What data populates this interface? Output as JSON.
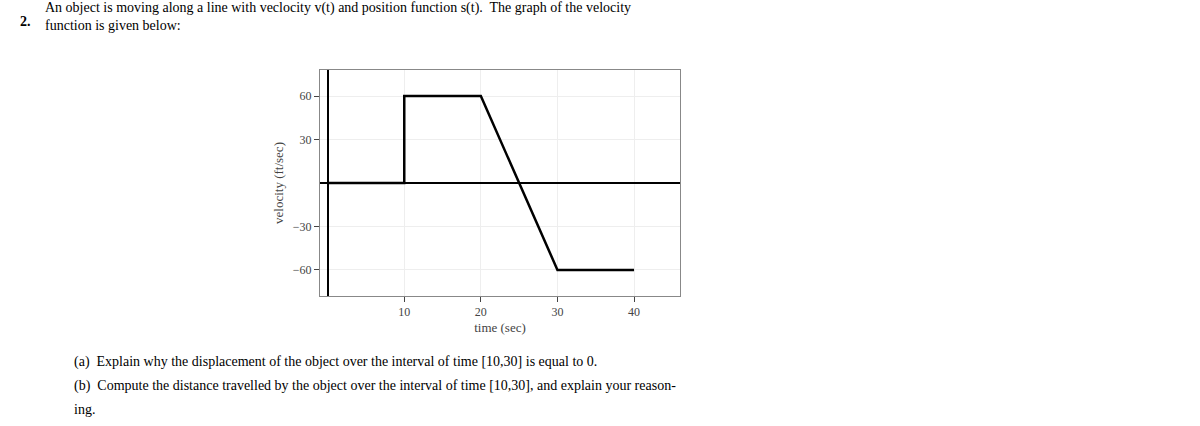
{
  "chart_data": {
    "type": "line",
    "title": "An object is moving along a line with veclocity v(t) and position function s(t).  The graph of the velocity\nfunction is given below:",
    "x": [
      0,
      10,
      10,
      20,
      30,
      40
    ],
    "values": [
      0,
      0,
      60,
      60,
      -60,
      -60
    ],
    "color": "black",
    "xlabel": "time (sec)",
    "ylabel": "velocity (ft/sec)",
    "xlim": [
      -1,
      46
    ],
    "ylim": [
      -78,
      78
    ],
    "xticks": [
      10,
      20,
      30,
      40
    ],
    "yticks": [
      {
        "value": -60,
        "label": "−60"
      },
      {
        "value": -30,
        "label": "−30"
      },
      30,
      60
    ],
    "grid": true,
    "annotations": [
      "2.",
      "(a)  Explain why the displacement of the object over the interval of time [10,30] is equal to 0.",
      "(b)  Compute the distance travelled by the object over the interval of time [10,30], and explain your reason-",
      "ing."
    ]
  }
}
